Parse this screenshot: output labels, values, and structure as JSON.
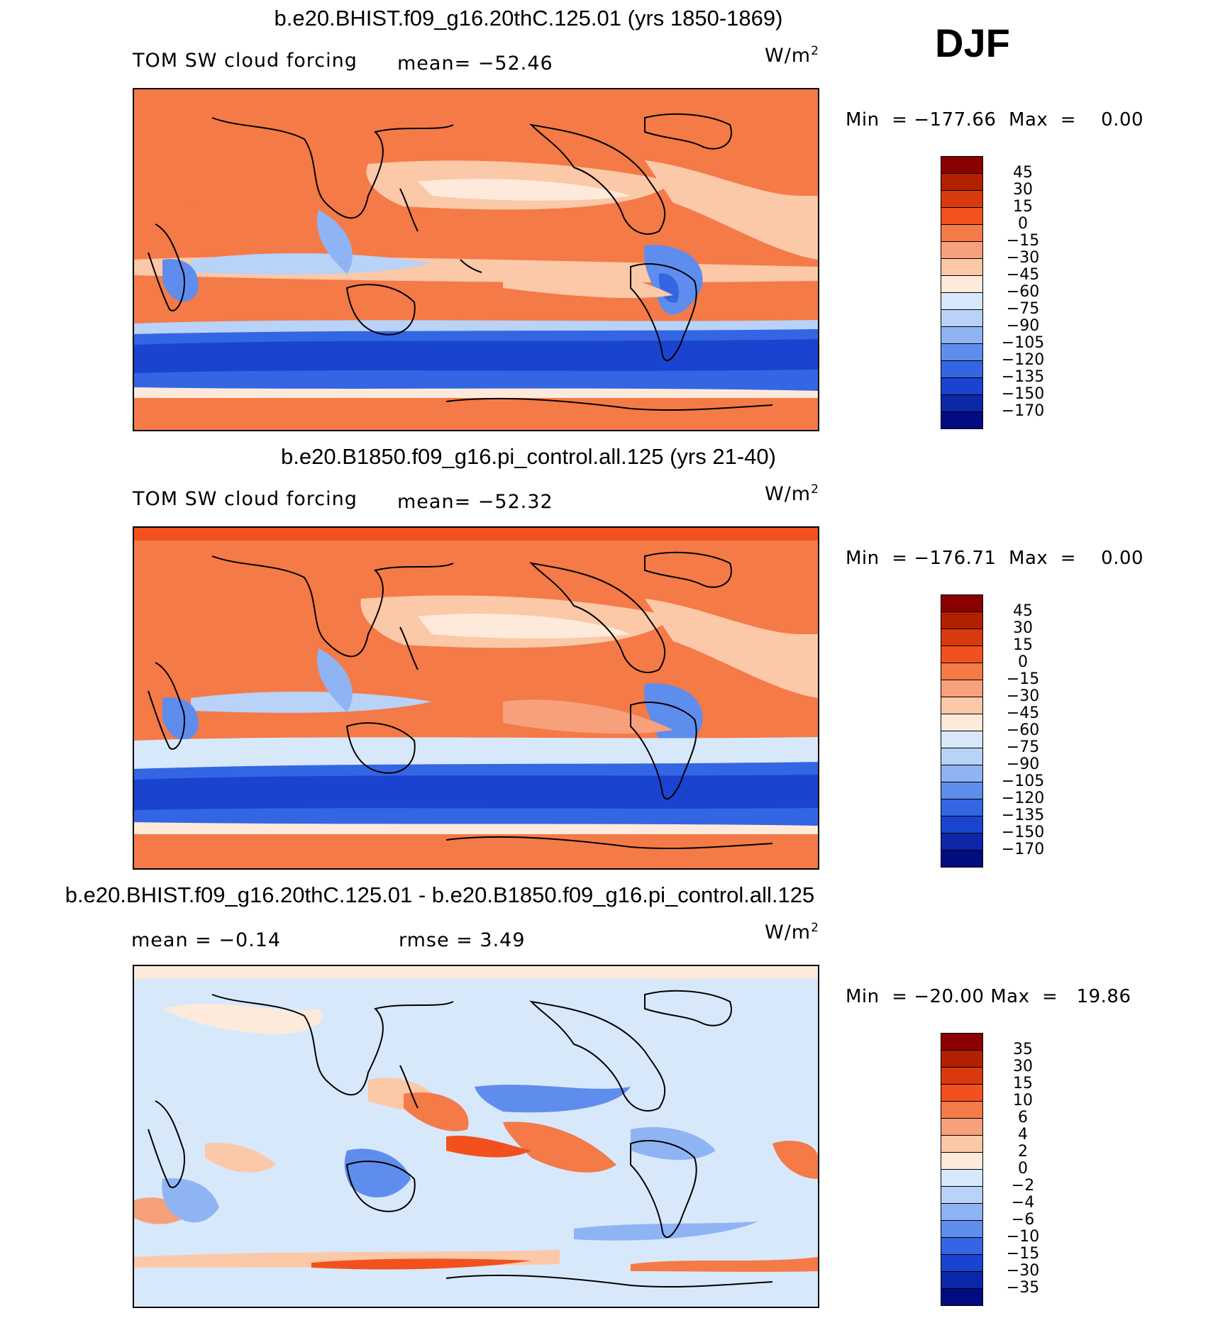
{
  "season": "DJF",
  "panels": [
    {
      "title": "b.e20.BHIST.f09_g16.20thC.125.01 (yrs 1850-1869)",
      "variable": "TOM SW cloud forcing",
      "mean_label": "mean= −52.46",
      "units": "W/m",
      "units_sup": "2",
      "min_label": "Min  =",
      "min_value": "−177.66",
      "max_label": "Max  =",
      "max_value": "0.00",
      "colorbar": {
        "labels": [
          "45",
          "30",
          "15",
          "0",
          "−15",
          "−30",
          "−45",
          "−60",
          "−75",
          "−90",
          "−105",
          "−120",
          "−135",
          "−150",
          "−170"
        ],
        "colors": [
          "#8b0000",
          "#b22000",
          "#d83a0e",
          "#f2511e",
          "#f47a48",
          "#f7a07c",
          "#fbc8a8",
          "#fdeadb",
          "#d8e8fb",
          "#b8d2f8",
          "#8fb4f3",
          "#5f8ded",
          "#3466e3",
          "#1a44cf",
          "#0c27a8",
          "#000c80"
        ]
      }
    },
    {
      "title": "b.e20.B1850.f09_g16.pi_control.all.125 (yrs 21-40)",
      "variable": "TOM SW cloud forcing",
      "mean_label": "mean= −52.32",
      "units": "W/m",
      "units_sup": "2",
      "min_label": "Min  =",
      "min_value": "−176.71",
      "max_label": "Max  =",
      "max_value": "0.00",
      "colorbar": {
        "labels": [
          "45",
          "30",
          "15",
          "0",
          "−15",
          "−30",
          "−45",
          "−60",
          "−75",
          "−90",
          "−105",
          "−120",
          "−135",
          "−150",
          "−170"
        ],
        "colors": [
          "#8b0000",
          "#b22000",
          "#d83a0e",
          "#f2511e",
          "#f47a48",
          "#f7a07c",
          "#fbc8a8",
          "#fdeadb",
          "#d8e8fb",
          "#b8d2f8",
          "#8fb4f3",
          "#5f8ded",
          "#3466e3",
          "#1a44cf",
          "#0c27a8",
          "#000c80"
        ]
      }
    },
    {
      "title": "b.e20.BHIST.f09_g16.20thC.125.01 - b.e20.B1850.f09_g16.pi_control.all.125",
      "mean_label": "mean  =   −0.14",
      "rmse_label": "rmse  =     3.49",
      "units": "W/m",
      "units_sup": "2",
      "min_label": "Min  =",
      "min_value": "−20.00",
      "max_label": "Max  =",
      "max_value": "19.86",
      "colorbar": {
        "labels": [
          "35",
          "30",
          "15",
          "10",
          "6",
          "4",
          "2",
          "0",
          "−2",
          "−4",
          "−6",
          "−10",
          "−15",
          "−30",
          "−35"
        ],
        "colors": [
          "#8b0000",
          "#b22000",
          "#d83a0e",
          "#f2511e",
          "#f47a48",
          "#f7a07c",
          "#fbc8a8",
          "#fdeadb",
          "#d8e8fb",
          "#b8d2f8",
          "#8fb4f3",
          "#5f8ded",
          "#3466e3",
          "#1a44cf",
          "#0c27a8",
          "#000c80"
        ]
      }
    }
  ]
}
